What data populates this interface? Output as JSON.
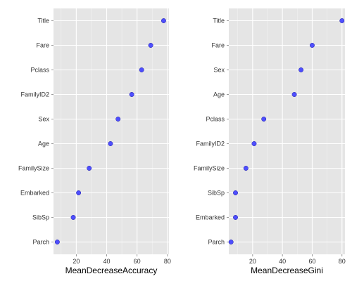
{
  "chart_data": [
    {
      "type": "scatter",
      "xlabel": "MeanDecreaseAccuracy",
      "ylabel": "",
      "xlim": [
        5,
        81
      ],
      "xticks": [
        20,
        40,
        60,
        80
      ],
      "grid": true,
      "point_color": "#3333ff",
      "panel_background": "#e5e5e5",
      "categories": [
        "Title",
        "Fare",
        "Pclass",
        "FamilyID2",
        "Sex",
        "Age",
        "FamilySize",
        "Embarked",
        "SibSp",
        "Parch"
      ],
      "values": [
        77.5,
        69.0,
        63.0,
        56.5,
        47.5,
        42.5,
        28.5,
        21.5,
        18.0,
        7.5
      ]
    },
    {
      "type": "scatter",
      "xlabel": "MeanDecreaseGini",
      "ylabel": "",
      "xlim": [
        4,
        82
      ],
      "xticks": [
        20,
        40,
        60,
        80
      ],
      "grid": true,
      "point_color": "#3333ff",
      "panel_background": "#e5e5e5",
      "categories": [
        "Title",
        "Fare",
        "Sex",
        "Age",
        "Pclass",
        "FamilyID2",
        "FamilySize",
        "SibSp",
        "Embarked",
        "Parch"
      ],
      "values": [
        80.0,
        60.0,
        52.5,
        48.0,
        27.5,
        21.0,
        15.5,
        8.5,
        8.5,
        5.5
      ]
    }
  ]
}
